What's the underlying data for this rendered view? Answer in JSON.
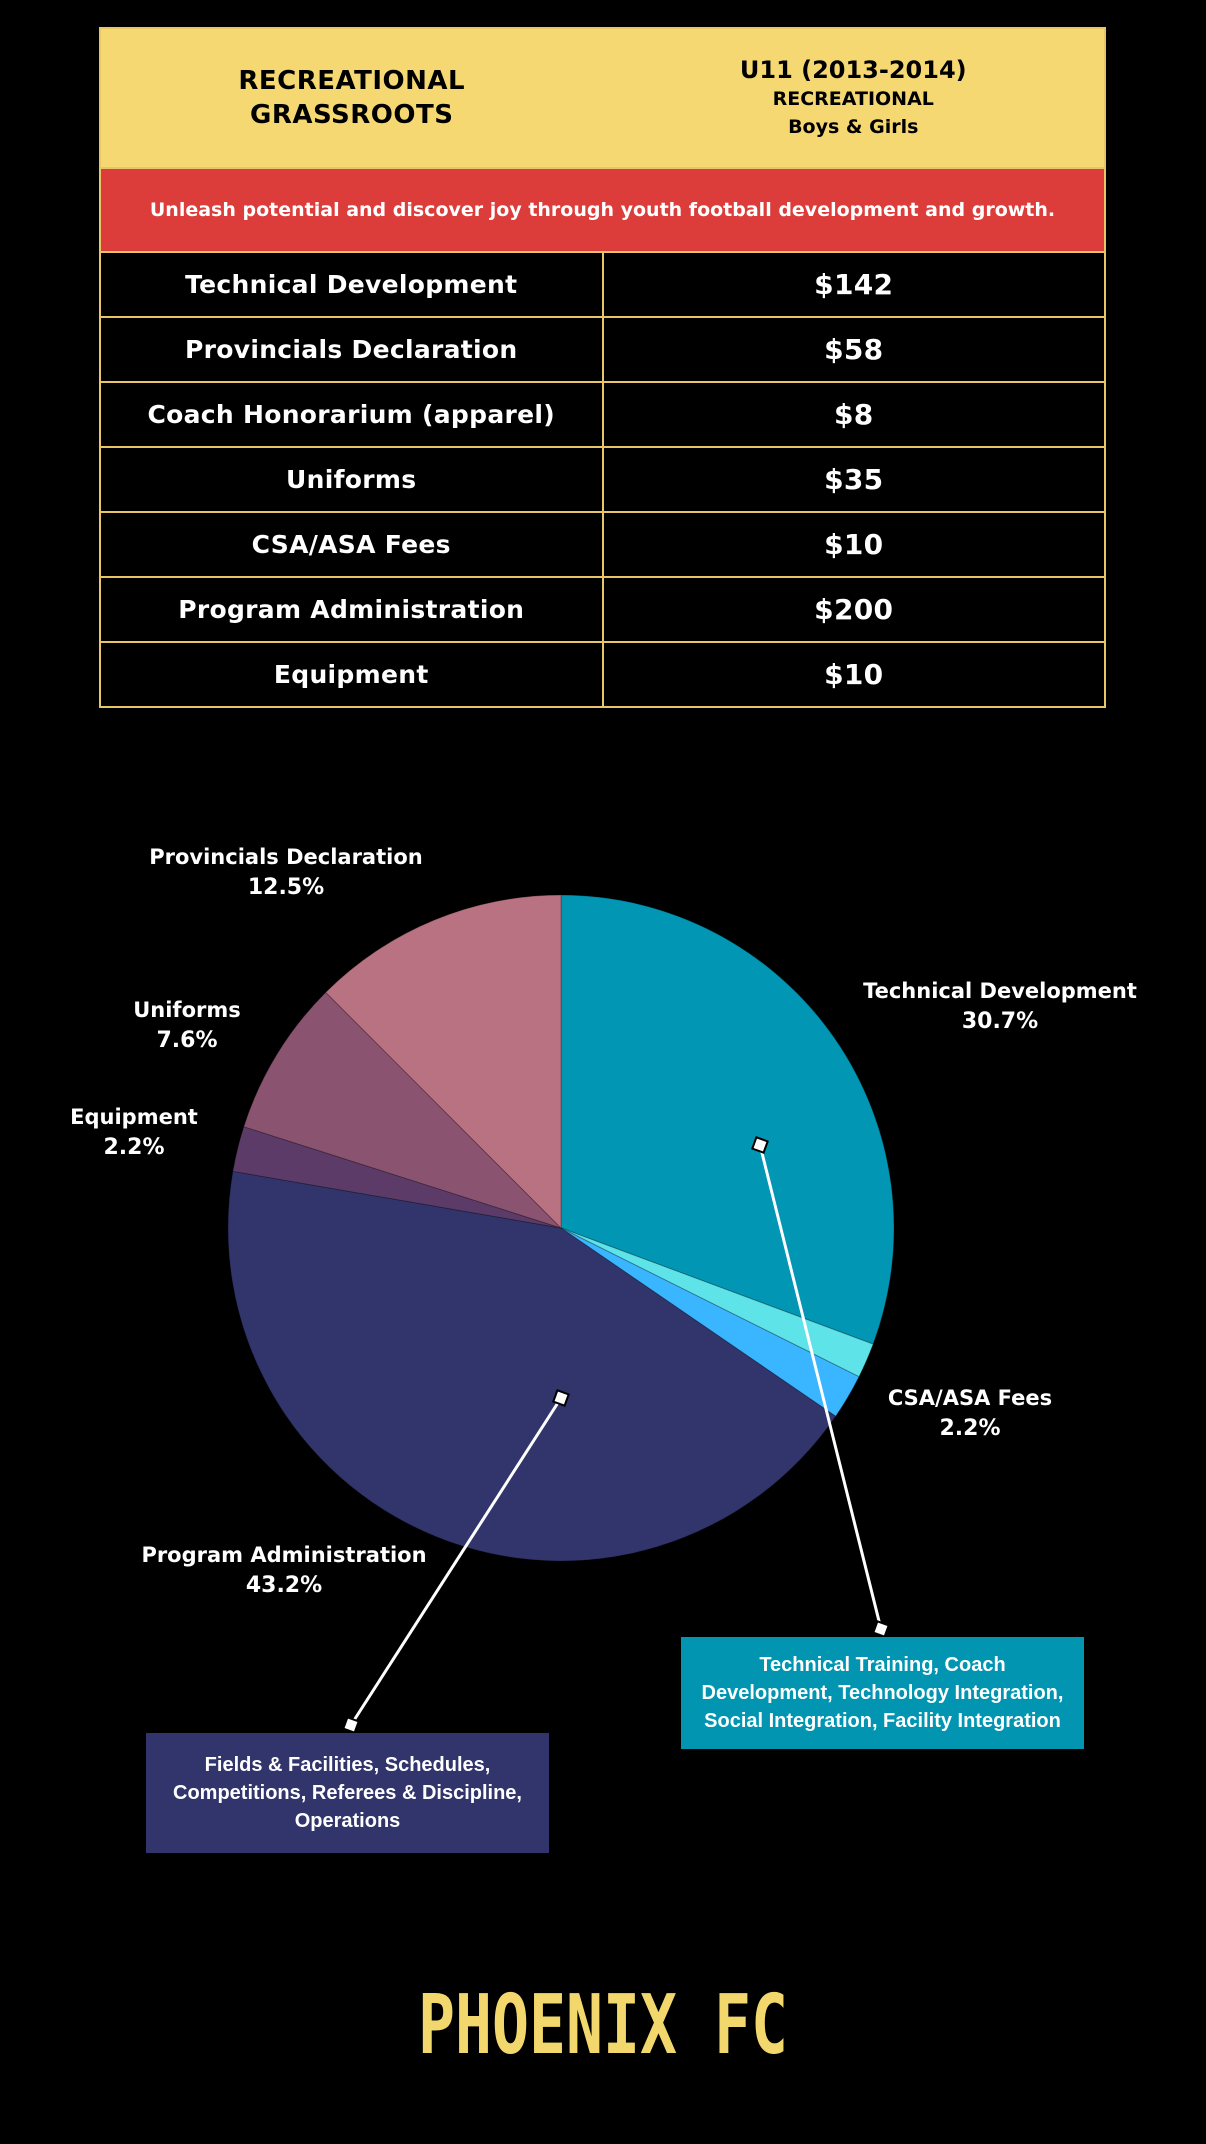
{
  "header": {
    "left_line1": "RECREATIONAL",
    "left_line2": "GRASSROOTS",
    "right_line1": "U11 (2013-2014)",
    "right_line2": "RECREATIONAL",
    "right_line3": "Boys & Girls"
  },
  "tagline": "Unleash potential and discover joy through youth football development and growth.",
  "fees": [
    {
      "label": "Technical Development",
      "amount": "$142"
    },
    {
      "label": "Provincials Declaration",
      "amount": "$58"
    },
    {
      "label": "Coach Honorarium (apparel)",
      "amount": "$8"
    },
    {
      "label": "Uniforms",
      "amount": "$35"
    },
    {
      "label": "CSA/ASA Fees",
      "amount": "$10"
    },
    {
      "label": "Program Administration",
      "amount": "$200"
    },
    {
      "label": "Equipment",
      "amount": "$10"
    }
  ],
  "chart_data": {
    "type": "pie",
    "slices": [
      {
        "name": "Technical Development",
        "value": 30.7,
        "value_label": "30.7%",
        "color": "#0196b3",
        "label_shown": true
      },
      {
        "name": "Coach Honorarium (apparel)",
        "value": 1.7,
        "value_label": "",
        "color": "#5ee3e8",
        "label_shown": false
      },
      {
        "name": "CSA/ASA Fees",
        "value": 2.2,
        "value_label": "2.2%",
        "color": "#3ab5ff",
        "label_shown": true
      },
      {
        "name": "Program Administration",
        "value": 43.2,
        "value_label": "43.2%",
        "color": "#31356c",
        "label_shown": true
      },
      {
        "name": "Equipment",
        "value": 2.2,
        "value_label": "2.2%",
        "color": "#5c3b69",
        "label_shown": true
      },
      {
        "name": "Uniforms",
        "value": 7.6,
        "value_label": "7.6%",
        "color": "#8a5470",
        "label_shown": true
      },
      {
        "name": "Provincials Declaration",
        "value": 12.5,
        "value_label": "12.5%",
        "color": "#b87282",
        "label_shown": true
      }
    ]
  },
  "callouts": {
    "technical": "Technical Training, Coach Development, Technology Integration, Social Integration, Facility Integration",
    "administration": "Fields & Facilities, Schedules, Competitions, Referees & Discipline, Operations"
  },
  "logo_text": "PHOENIX FC",
  "colors": {
    "background": "#000000",
    "header_yellow": "#f5d872",
    "tagline_red": "#dc3d3a",
    "border_gold": "#e8c565",
    "logo_yellow": "#f2d86c"
  }
}
